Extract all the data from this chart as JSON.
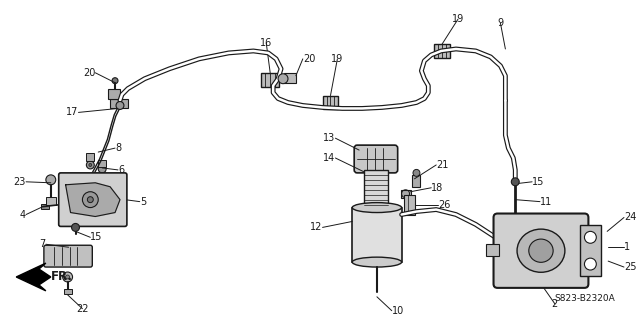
{
  "bg_color": "#ffffff",
  "line_color": "#1a1a1a",
  "text_color": "#1a1a1a",
  "fig_width": 6.4,
  "fig_height": 3.19,
  "dpi": 100,
  "watermark": "S823-B2320A",
  "part_label_fontsize": 7.0
}
